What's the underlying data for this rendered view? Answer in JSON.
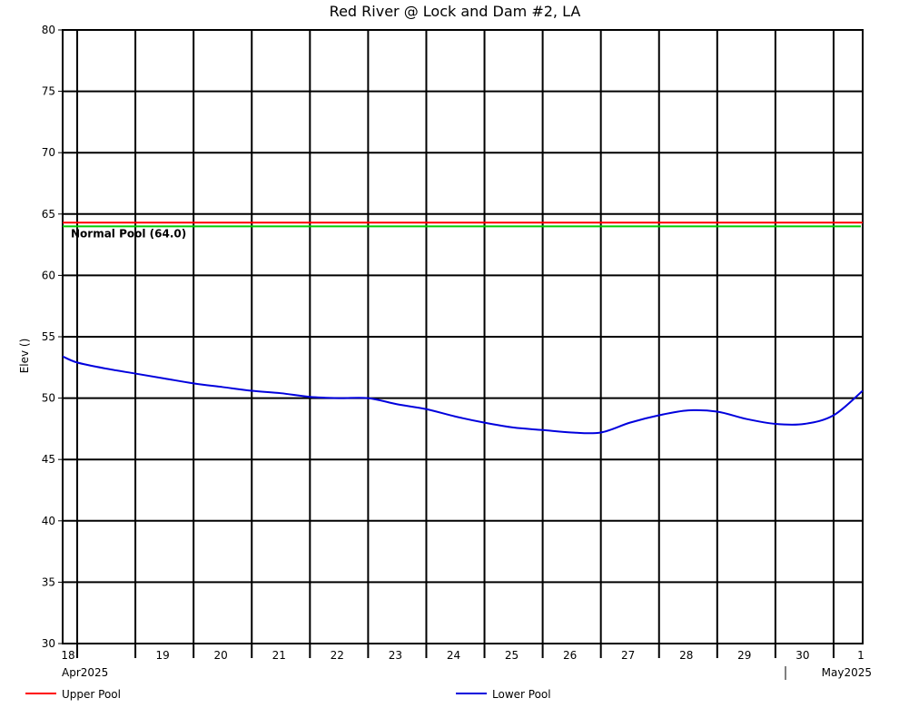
{
  "chart_data": {
    "type": "line",
    "title": "Red River @ Lock and Dam #2, LA",
    "ylabel": "Elev ()",
    "xlabel": "",
    "ylim": [
      30,
      80
    ],
    "yticks": [
      30,
      35,
      40,
      45,
      50,
      55,
      60,
      65,
      70,
      75,
      80
    ],
    "x_range": [
      "2025-04-17T18:00",
      "2025-05-01T12:00"
    ],
    "x_tick_labels": [
      "18",
      "19",
      "20",
      "21",
      "22",
      "23",
      "24",
      "25",
      "26",
      "27",
      "28",
      "29",
      "30",
      "1"
    ],
    "x_month_labels": [
      {
        "label": "Apr2025",
        "date": "2025-04-18"
      },
      {
        "label": "May2025",
        "date": "2025-05-01"
      }
    ],
    "grid": true,
    "legend_position": "bottom",
    "series": [
      {
        "name": "Upper Pool",
        "color": "#ff0000",
        "x": [
          "2025-04-17T18:00",
          "2025-05-01T12:00"
        ],
        "values": [
          64.3,
          64.3
        ]
      },
      {
        "name": "Lower Pool",
        "color": "#0000dd",
        "x": [
          "2025-04-17T18:00",
          "2025-04-18T00:00",
          "2025-04-18T12:00",
          "2025-04-19T00:00",
          "2025-04-19T12:00",
          "2025-04-20T00:00",
          "2025-04-20T12:00",
          "2025-04-21T00:00",
          "2025-04-21T12:00",
          "2025-04-22T00:00",
          "2025-04-22T12:00",
          "2025-04-23T00:00",
          "2025-04-23T12:00",
          "2025-04-24T00:00",
          "2025-04-24T12:00",
          "2025-04-25T00:00",
          "2025-04-25T12:00",
          "2025-04-26T00:00",
          "2025-04-26T12:00",
          "2025-04-27T00:00",
          "2025-04-27T12:00",
          "2025-04-28T00:00",
          "2025-04-28T12:00",
          "2025-04-29T00:00",
          "2025-04-29T12:00",
          "2025-04-30T00:00",
          "2025-04-30T12:00",
          "2025-05-01T00:00",
          "2025-05-01T12:00"
        ],
        "values": [
          53.4,
          52.9,
          52.4,
          52.0,
          51.6,
          51.2,
          50.9,
          50.6,
          50.4,
          50.1,
          50.0,
          50.0,
          49.5,
          49.1,
          48.5,
          48.0,
          47.6,
          47.4,
          47.2,
          47.2,
          48.0,
          48.6,
          49.0,
          48.9,
          48.3,
          47.9,
          47.9,
          48.6,
          50.6
        ]
      }
    ],
    "annotations": [
      {
        "text": "Normal Pool (64.0)",
        "y": 64.0,
        "color": "#00cc00"
      }
    ]
  }
}
